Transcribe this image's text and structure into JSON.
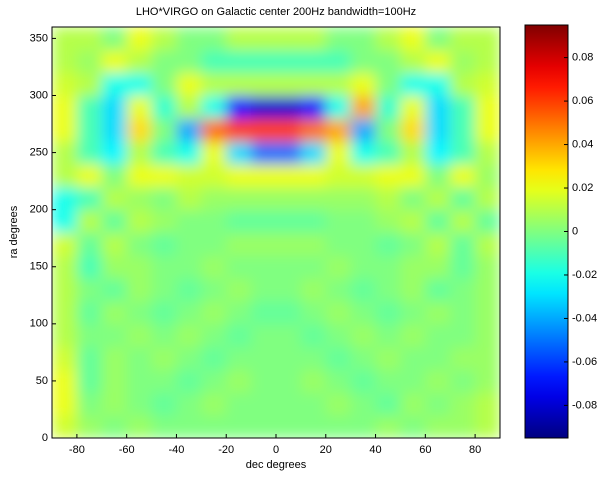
{
  "chart_data": {
    "type": "heatmap",
    "title": "LHO*VIRGO on Galactic center 200Hz bandwidth=100Hz",
    "x_label": "dec degrees",
    "y_label": "ra degrees",
    "colormap": "jet",
    "x": [
      -85,
      -75,
      -65,
      -55,
      -45,
      -35,
      -25,
      -15,
      -5,
      5,
      15,
      25,
      35,
      45,
      55,
      65,
      75,
      85
    ],
    "y": [
      10,
      30,
      50,
      70,
      90,
      110,
      130,
      150,
      170,
      190,
      210,
      230,
      250,
      270,
      290,
      310,
      330,
      350
    ],
    "z": [
      [
        0.015,
        0.005,
        0,
        0.005,
        0,
        0,
        0,
        0,
        0,
        0,
        0,
        0,
        0,
        0.005,
        0,
        0.005,
        0.005,
        0.01
      ],
      [
        0.02,
        0,
        0.005,
        0,
        -0.005,
        0,
        0.005,
        0,
        0,
        0,
        0,
        0.005,
        0,
        -0.005,
        0.005,
        0,
        0.005,
        0.01
      ],
      [
        0.02,
        -0.005,
        0.005,
        0,
        0,
        -0.005,
        0,
        0.005,
        0,
        0,
        0.005,
        0,
        -0.005,
        0,
        0,
        0.005,
        0,
        0.005
      ],
      [
        0.015,
        -0.005,
        0.005,
        0,
        0.005,
        0,
        -0.005,
        0,
        0,
        0,
        0,
        -0.005,
        0,
        0.005,
        0,
        0,
        0.005,
        0.005
      ],
      [
        0.01,
        0,
        0,
        0.005,
        0,
        0.005,
        0,
        -0.005,
        0,
        0,
        -0.005,
        0,
        0.005,
        0,
        0.005,
        0,
        0,
        0.005
      ],
      [
        0.01,
        -0.005,
        0.005,
        0,
        -0.005,
        0,
        0.005,
        0,
        -0.005,
        -0.005,
        0,
        0.005,
        0,
        -0.005,
        0,
        0.005,
        0,
        0.005
      ],
      [
        0.01,
        0,
        -0.005,
        0.005,
        0,
        -0.005,
        0,
        0.005,
        0,
        0,
        0.005,
        0,
        -0.005,
        0,
        0.005,
        -0.005,
        0,
        0.005
      ],
      [
        0.01,
        -0.01,
        0.005,
        0.005,
        0,
        0,
        0.005,
        0,
        0,
        0,
        0,
        0.005,
        0,
        0,
        0.005,
        0.005,
        -0.005,
        0.005
      ],
      [
        0.015,
        -0.005,
        0.01,
        0,
        -0.005,
        0,
        0,
        0.005,
        0.005,
        0.005,
        0.005,
        0,
        0,
        -0.005,
        0,
        0.01,
        -0.005,
        0.01
      ],
      [
        -0.02,
        0.01,
        -0.005,
        0.01,
        0.005,
        0,
        0,
        -0.005,
        -0.005,
        -0.005,
        -0.005,
        0,
        0,
        0.005,
        0.01,
        -0.005,
        0.01,
        -0.005
      ],
      [
        -0.02,
        -0.01,
        0.01,
        0.005,
        0,
        0.01,
        0.005,
        0.005,
        0.005,
        0.005,
        0.005,
        0.005,
        0.005,
        0.01,
        0,
        0.01,
        -0.005,
        0.01
      ],
      [
        0.01,
        0.02,
        0,
        0.02,
        0.02,
        0.015,
        0.015,
        0.02,
        0.02,
        0.02,
        0.02,
        0.015,
        0.015,
        0.02,
        0.02,
        0,
        0.02,
        0.005
      ],
      [
        0.01,
        -0.01,
        -0.025,
        0.01,
        -0.01,
        -0.02,
        0.02,
        -0.03,
        -0.05,
        -0.05,
        -0.03,
        0.02,
        -0.02,
        -0.01,
        0.01,
        -0.025,
        -0.01,
        0.01
      ],
      [
        0.02,
        -0.01,
        -0.03,
        0.03,
        0,
        -0.04,
        0.05,
        0.06,
        0.06,
        0.06,
        0.05,
        0.04,
        -0.04,
        0,
        0.03,
        -0.03,
        -0.01,
        0.02
      ],
      [
        0.02,
        -0.01,
        -0.03,
        0.02,
        -0.015,
        0.01,
        -0.02,
        -0.07,
        -0.08,
        -0.08,
        -0.07,
        -0.02,
        0.04,
        -0.015,
        0.02,
        -0.03,
        -0.01,
        0.02
      ],
      [
        0.015,
        0.01,
        -0.02,
        -0.02,
        0,
        0.02,
        0.01,
        0.01,
        0.01,
        0.01,
        0.01,
        0.01,
        0.02,
        0,
        -0.02,
        -0.02,
        0.01,
        0.015
      ],
      [
        0.01,
        0.005,
        0.02,
        0.01,
        0,
        0,
        -0.01,
        -0.01,
        -0.01,
        -0.01,
        -0.01,
        -0.01,
        0,
        0,
        0.01,
        0.02,
        0.005,
        0.01
      ],
      [
        0.01,
        0.01,
        0,
        0.02,
        0.01,
        0,
        0,
        0.01,
        0.01,
        0.01,
        0.01,
        0,
        0,
        0.01,
        0.02,
        0,
        0.01,
        0.01
      ]
    ],
    "xlim": [
      -90,
      90
    ],
    "xticks": [
      -80,
      -60,
      -40,
      -20,
      0,
      20,
      40,
      60,
      80
    ],
    "ylim": [
      0,
      360
    ],
    "yticks": [
      0,
      50,
      100,
      150,
      200,
      250,
      300,
      350
    ],
    "clim": [
      -0.095,
      0.095
    ],
    "cticks": [
      -0.08,
      -0.06,
      -0.04,
      -0.02,
      0,
      0.02,
      0.04,
      0.06,
      0.08
    ]
  }
}
